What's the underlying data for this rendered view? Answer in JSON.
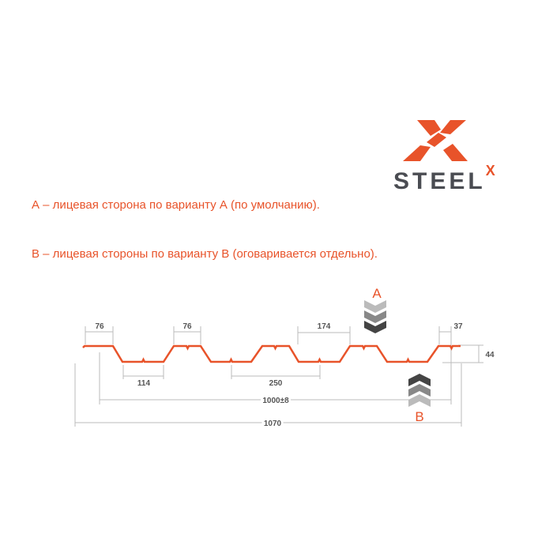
{
  "brand": {
    "name": "STEEL",
    "superscript": "X",
    "accent": "#e8532a",
    "text_color": "#4a4c52"
  },
  "notes": [
    "А – лицевая сторона по варианту А (по умолчанию).",
    "В – лицевая стороны по варианту В (оговаривается отдельно)."
  ],
  "diagram": {
    "profile_color": "#e8532a",
    "side_a": "A",
    "side_b": "B",
    "dimensions": {
      "top_left": "76",
      "top_second": "76",
      "bottom": "114",
      "span_174": "174",
      "span_250": "250",
      "edge": "37",
      "height": "44",
      "useful_width": "1000±8",
      "total_width": "1070"
    }
  }
}
